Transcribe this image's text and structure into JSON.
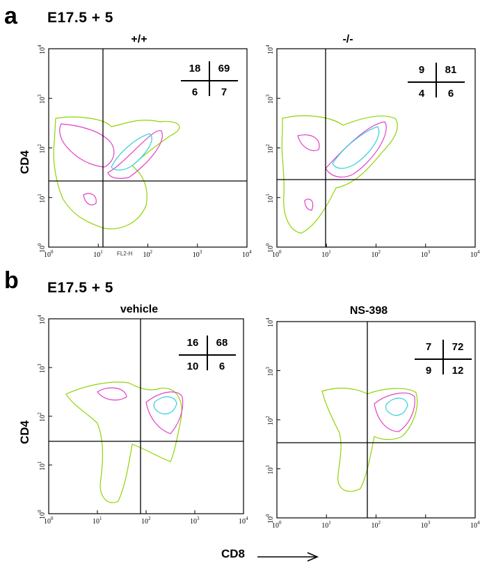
{
  "panels": [
    {
      "letter": "a",
      "condition": "E17.5 + 5"
    },
    {
      "letter": "b",
      "condition": "E17.5 + 5"
    }
  ],
  "plots": [
    {
      "title": "+/+",
      "quadrants": {
        "ul": "18",
        "ur": "69",
        "ll": "6",
        "lr": "7"
      },
      "extra_label": "FL2-H"
    },
    {
      "title": "-/-",
      "quadrants": {
        "ul": "9",
        "ur": "81",
        "ll": "4",
        "lr": "6"
      }
    },
    {
      "title": "vehicle",
      "quadrants": {
        "ul": "16",
        "ur": "68",
        "ll": "10",
        "lr": "6"
      }
    },
    {
      "title": "NS-398",
      "quadrants": {
        "ul": "7",
        "ur": "72",
        "ll": "9",
        "lr": "12"
      }
    }
  ],
  "axis": {
    "ylabel": "CD4",
    "xlabel": "CD8",
    "ticks": [
      "10",
      "10",
      "10",
      "10",
      "10"
    ],
    "exponents": [
      "0",
      "1",
      "2",
      "3",
      "4"
    ]
  },
  "colors": {
    "outer": "#8fd400",
    "middle": "#e040c8",
    "inner": "#3fd0e0"
  }
}
